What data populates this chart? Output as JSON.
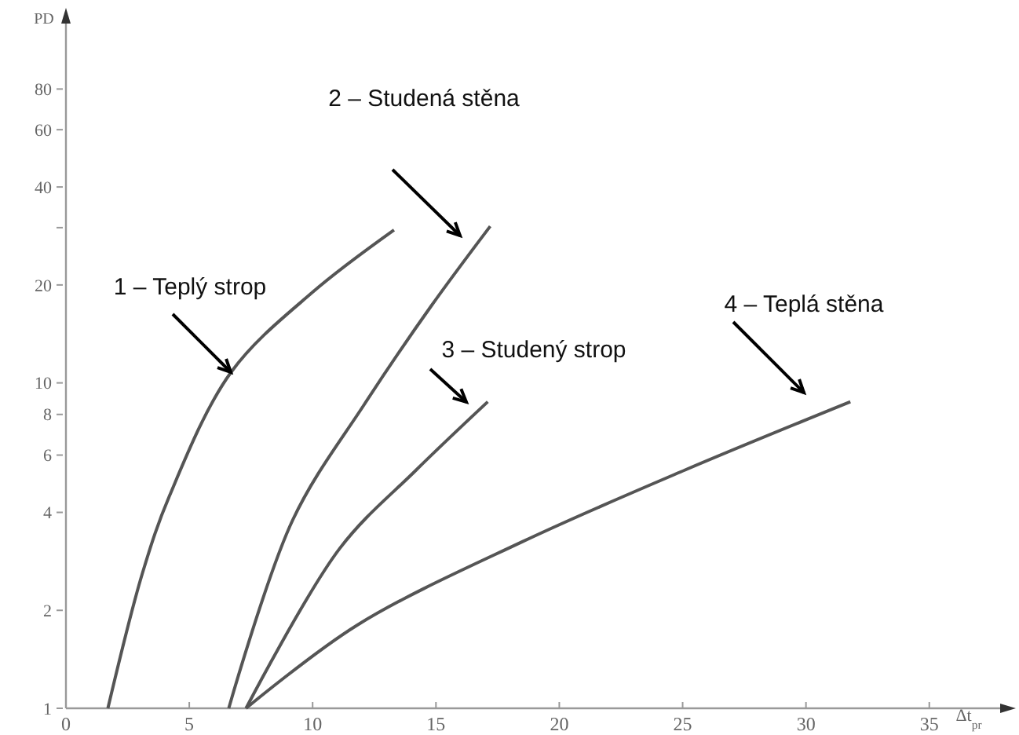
{
  "chart_data": {
    "type": "line",
    "xlabel": "Δt$_{pr}$",
    "ylabel": "PD",
    "log": "y",
    "xlim": [
      0,
      38
    ],
    "ylim": [
      1,
      130
    ],
    "xticks": [
      0,
      5,
      10,
      15,
      20,
      25,
      30,
      35
    ],
    "yticks": [
      1,
      2,
      4,
      6,
      8,
      10,
      20,
      {
        "value": 30,
        "label": null
      },
      40,
      60,
      80
    ],
    "grid": false,
    "marker": "none",
    "line_style": "solid",
    "series": [
      {
        "color": "#555555",
        "x": [
          1.7,
          3.1,
          4.2,
          6.7,
          10,
          13.3
        ],
        "values": [
          1,
          2.6,
          4.5,
          10.8,
          19,
          29.5
        ]
      },
      {
        "color": "#555555",
        "x": [
          6.6,
          9.2,
          12.1,
          14.8,
          17.2
        ],
        "values": [
          1,
          3.8,
          8.6,
          17.2,
          30.3
        ]
      },
      {
        "color": "#555555",
        "x": [
          7.3,
          11.1,
          14.2,
          17.1
        ],
        "values": [
          1,
          3.1,
          5.4,
          8.75
        ]
      },
      {
        "color": "#555555",
        "x": [
          7.3,
          11.8,
          18.5,
          25.1,
          31.8
        ],
        "values": [
          1,
          1.8,
          3.25,
          5.4,
          8.75
        ]
      }
    ],
    "annotations": [
      "1 – Teplý strop",
      "2 – Studená stěna",
      "3 – Studený strop",
      "4 – Teplá stěna"
    ]
  }
}
